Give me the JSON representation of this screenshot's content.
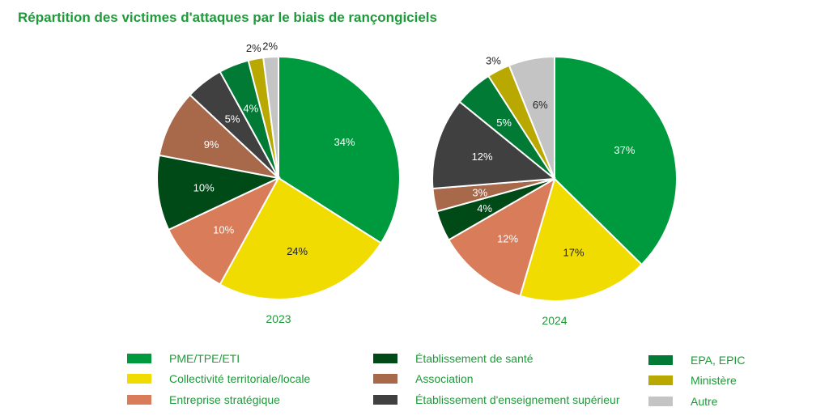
{
  "title": "Répartition des victimes d'attaques par le biais de rançongiciels",
  "categories": [
    "PME/TPE/ETI",
    "Collectivité territoriale/locale",
    "Entreprise stratégique",
    "Établissement de santé",
    "Association",
    "Établissement d'enseignement supérieur",
    "EPA, EPIC",
    "Ministère",
    "Autre"
  ],
  "colors": [
    "#009a3e",
    "#f0dc00",
    "#d97c5a",
    "#004a18",
    "#a8684a",
    "#404040",
    "#007a34",
    "#b8a800",
    "#c4c4c4"
  ],
  "chart_data": {
    "type": "pie",
    "title": "Répartition des victimes d'attaques par le biais de rançongiciels",
    "legend_position": "bottom",
    "series": [
      {
        "name": "2023",
        "values": [
          34,
          24,
          10,
          10,
          9,
          5,
          4,
          2,
          2
        ],
        "labels": [
          "34%",
          "24%",
          "10%",
          "10%",
          "9%",
          "5%",
          "4%",
          "2%",
          "2%"
        ]
      },
      {
        "name": "2024",
        "values": [
          37,
          17,
          12,
          4,
          3,
          12,
          5,
          3,
          6
        ],
        "labels": [
          "37%",
          "17%",
          "12%",
          "4%",
          "3%",
          "12%",
          "5%",
          "3%",
          "6%"
        ]
      }
    ]
  }
}
